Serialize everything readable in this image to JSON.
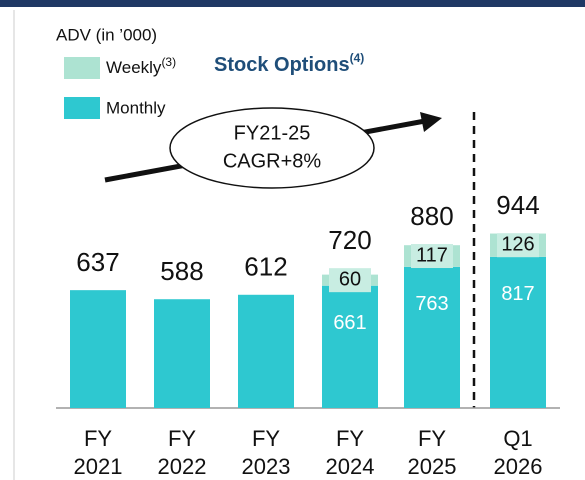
{
  "chart_data": {
    "type": "stacked_bar",
    "axis_title": "ADV (in ’000)",
    "title": "Stock Options",
    "title_note": "(4)",
    "annotation": [
      "FY21-25",
      "CAGR+8%"
    ],
    "categories": [
      [
        "FY",
        "2021"
      ],
      [
        "FY",
        "2022"
      ],
      [
        "FY",
        "2023"
      ],
      [
        "FY",
        "2024"
      ],
      [
        "FY",
        "2025"
      ],
      [
        "Q1",
        "2026"
      ]
    ],
    "series": [
      {
        "name": "Monthly",
        "color": "#2ec8d0",
        "values": [
          637,
          588,
          612,
          661,
          763,
          817
        ]
      },
      {
        "name": "Weekly",
        "note": "(3)",
        "color": "#ade3d2",
        "values": [
          null,
          null,
          null,
          60,
          117,
          126
        ]
      }
    ],
    "totals": [
      637,
      588,
      612,
      720,
      880,
      944
    ],
    "ylim": [
      0,
      1200
    ]
  }
}
